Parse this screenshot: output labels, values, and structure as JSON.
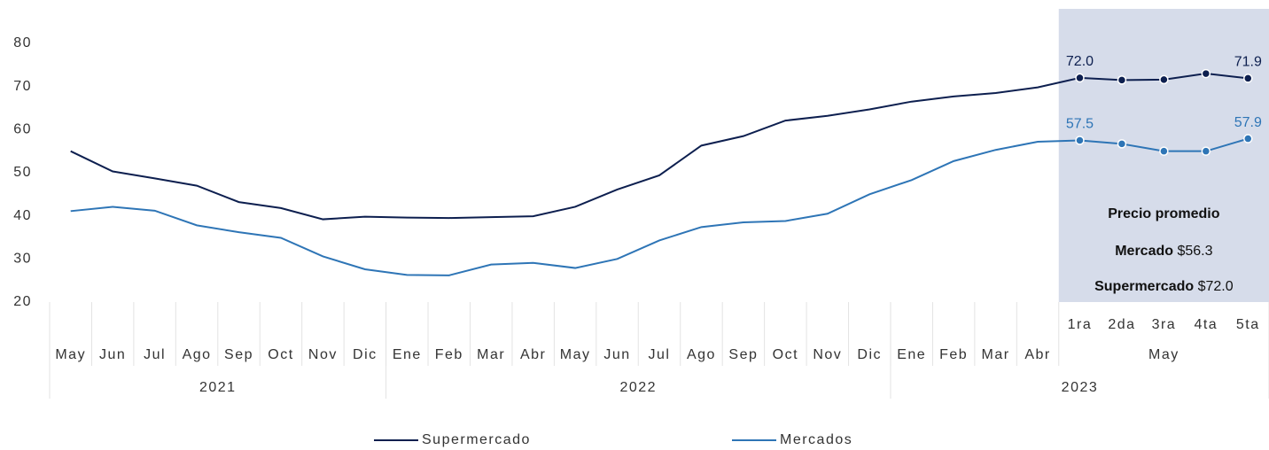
{
  "chart_data": {
    "type": "line",
    "categories": [
      "May",
      "Jun",
      "Jul",
      "Ago",
      "Sep",
      "Oct",
      "Nov",
      "Dic",
      "Ene",
      "Feb",
      "Mar",
      "Abr",
      "May",
      "Jun",
      "Jul",
      "Ago",
      "Sep",
      "Oct",
      "Nov",
      "Dic",
      "Ene",
      "Feb",
      "Mar",
      "Abr",
      "1ra",
      "2da",
      "3ra",
      "4ta",
      "5ta"
    ],
    "subgroups": [
      {
        "label": "May",
        "start": 24,
        "count": 5
      }
    ],
    "groups": [
      {
        "label": "2021",
        "count": 8
      },
      {
        "label": "2022",
        "count": 12
      },
      {
        "label": "2023",
        "count": 9
      }
    ],
    "series": [
      {
        "name": "Supermercado",
        "color": "#0d1f4f",
        "values": [
          55.0,
          50.3,
          48.7,
          47.0,
          43.2,
          41.8,
          39.2,
          39.8,
          39.6,
          39.5,
          39.7,
          39.9,
          42.1,
          46.1,
          49.4,
          56.3,
          58.5,
          62.1,
          63.2,
          64.7,
          66.5,
          67.7,
          68.5,
          69.8,
          72.0,
          71.5,
          71.6,
          73.0,
          71.9
        ],
        "value_labels": [
          null,
          null,
          null,
          null,
          null,
          null,
          null,
          null,
          null,
          null,
          null,
          null,
          null,
          null,
          null,
          null,
          null,
          null,
          null,
          null,
          null,
          null,
          null,
          null,
          "72.0",
          null,
          null,
          null,
          "71.9"
        ]
      },
      {
        "name": "Mercados",
        "color": "#2e75b6",
        "values": [
          41.1,
          42.1,
          41.2,
          37.8,
          36.2,
          34.9,
          30.6,
          27.6,
          26.3,
          26.2,
          28.7,
          29.1,
          27.9,
          30.0,
          34.3,
          37.4,
          38.5,
          38.8,
          40.5,
          45.0,
          48.3,
          52.7,
          55.3,
          57.2,
          57.5,
          56.7,
          55.0,
          55.0,
          57.9
        ],
        "value_labels": [
          null,
          null,
          null,
          null,
          null,
          null,
          null,
          null,
          null,
          null,
          null,
          null,
          null,
          null,
          null,
          null,
          null,
          null,
          null,
          null,
          null,
          null,
          null,
          null,
          "57.5",
          null,
          null,
          null,
          "57.9"
        ]
      }
    ],
    "ylim": [
      20,
      80
    ],
    "yticks": [
      20,
      30,
      40,
      50,
      60,
      70,
      80
    ],
    "highlight_color": "#d6dcea",
    "annotation": {
      "title": "Precio promedio",
      "lines": [
        {
          "label": "Mercado",
          "value": "$56.3"
        },
        {
          "label": "Supermercado",
          "value": "$72.0"
        }
      ]
    }
  }
}
